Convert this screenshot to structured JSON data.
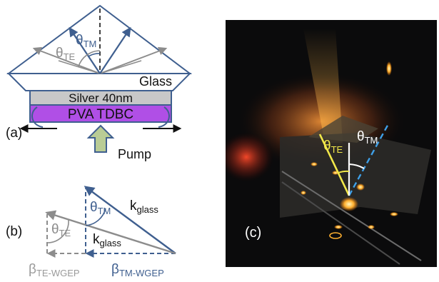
{
  "panel_a": {
    "label": "(a)",
    "glass_label": "Glass",
    "silver_label": "Silver 40nm",
    "pva_label": "PVA TDBC",
    "pump_label": "Pump",
    "theta_tm": {
      "symbol": "θ",
      "sub": "TM"
    },
    "theta_te": {
      "symbol": "θ",
      "sub": "TE"
    }
  },
  "panel_b": {
    "label": "(b)",
    "theta_tm": {
      "symbol": "θ",
      "sub": "TM"
    },
    "theta_te": {
      "symbol": "θ",
      "sub": "TE"
    },
    "k_glass_1": {
      "symbol": "k",
      "sub": "glass"
    },
    "k_glass_2": {
      "symbol": "k",
      "sub": "glass"
    },
    "beta_te": {
      "symbol": "β",
      "sub": "TE-WGEP"
    },
    "beta_tm": {
      "symbol": "β",
      "sub": "TM-WGEP"
    }
  },
  "panel_c": {
    "label": "(c)",
    "theta_te": {
      "symbol": "θ",
      "sub": "TE"
    },
    "theta_tm": {
      "symbol": "θ",
      "sub": "TM"
    }
  },
  "colors": {
    "blue": "#3f5f8f",
    "gray": "#8c8c8c",
    "silver_fill": "#c8c8c8",
    "pva_fill": "#b04fe6",
    "pump_fill": "#b9cc95",
    "photo_bg": "#0b0b0c",
    "yellow": "#f2e84a",
    "te_gray_text": "#9a9a9a"
  }
}
